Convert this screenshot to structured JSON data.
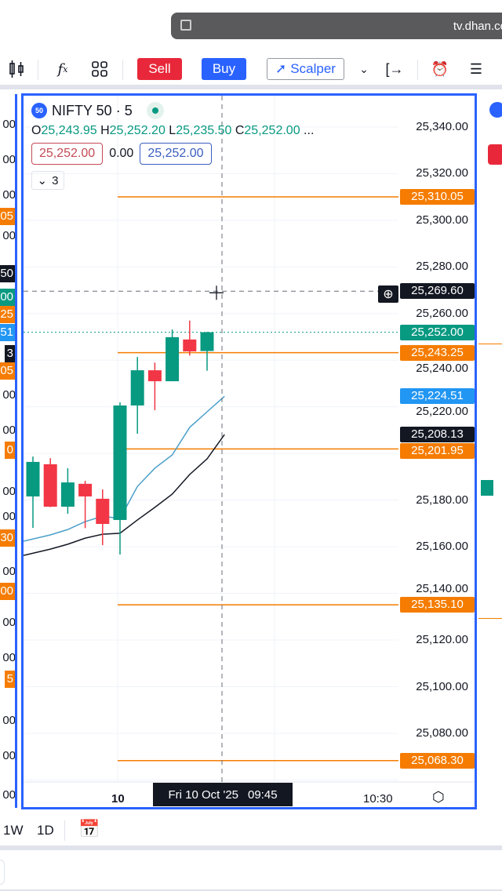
{
  "browser": {
    "url": "tv.dhan.co"
  },
  "toolbar": {
    "sell_label": "Sell",
    "buy_label": "Buy",
    "scalper_label": "Scalper"
  },
  "legend": {
    "symbol": "NIFTY 50 · 5",
    "logo_text": "50",
    "o_label": "O",
    "o": "25,243.95",
    "h_label": "H",
    "h": "25,252.20",
    "l_label": "L",
    "l": "25,235.50",
    "c_label": "C",
    "c": "25,252.00",
    "more": "...",
    "sell_price": "25,252.00",
    "spread": "0.00",
    "buy_price": "25,252.00",
    "indicators_count": "3"
  },
  "price_axis": [
    "25,340.00",
    "25,320.00",
    "25,300.00",
    "25,280.00",
    "25,260.00",
    "25,240.00",
    "25,220.00",
    "25,180.00",
    "25,160.00",
    "25,140.00",
    "25,120.00",
    "25,100.00",
    "25,080.00"
  ],
  "badges": [
    {
      "text": "25,310.05",
      "color": "#f57c00",
      "price": 25310.05
    },
    {
      "text": "25,269.60",
      "color": "#131722",
      "price": 25269.6
    },
    {
      "text": "25,252.00",
      "color": "#089981",
      "price": 25252.0
    },
    {
      "text": "25,243.25",
      "color": "#f57c00",
      "price": 25243.25
    },
    {
      "text": "25,224.51",
      "color": "#2196f3",
      "price": 25224.51
    },
    {
      "text": "25,208.13",
      "color": "#131722",
      "price": 25208.13
    },
    {
      "text": "25,201.95",
      "color": "#f57c00",
      "price": 25201.95
    },
    {
      "text": "25,135.10",
      "color": "#f57c00",
      "price": 25135.1
    },
    {
      "text": "25,068.30",
      "color": "#f57c00",
      "price": 25068.3
    }
  ],
  "time_axis": {
    "day_label": "10",
    "crosshair_time": "Fri 10 Oct '25",
    "crosshair_clock": "09:45",
    "later_label": "10:30"
  },
  "bottom": {
    "tf_1w": "1W",
    "tf_1d": "1D"
  },
  "left_fragments": [
    "00",
    "00",
    "00",
    "05",
    "00",
    "50",
    "00",
    "25",
    "51",
    "3",
    "05",
    "00",
    "00",
    "0",
    "00",
    "00",
    "30",
    "00",
    "00",
    "00",
    "00",
    "5",
    "00",
    "00",
    "00"
  ],
  "colors": {
    "up": "#089981",
    "down": "#f23645",
    "accent": "#2962ff",
    "level": "#f57c00",
    "ma_fast": "#4a9fc9",
    "ma_slow": "#131722"
  },
  "chart_data": {
    "type": "candlestick",
    "ylim": [
      25050,
      25350
    ],
    "candles": [
      {
        "o": 25181.6,
        "h": 25198.7,
        "l": 25168.1,
        "c": 25196.4
      },
      {
        "o": 25195.4,
        "h": 25198.0,
        "l": 25177.0,
        "c": 25177.2
      },
      {
        "o": 25177.2,
        "h": 25193.7,
        "l": 25174.2,
        "c": 25187.6
      },
      {
        "o": 25187.0,
        "h": 25188.3,
        "l": 25168.0,
        "c": 25181.6
      },
      {
        "o": 25180.6,
        "h": 25184.6,
        "l": 25160.7,
        "c": 25169.8
      },
      {
        "o": 25171.5,
        "h": 25222.0,
        "l": 25156.7,
        "c": 25220.6
      },
      {
        "o": 25220.6,
        "h": 25241.4,
        "l": 25208.5,
        "c": 25235.7
      },
      {
        "o": 25235.7,
        "h": 25239.0,
        "l": 25218.6,
        "c": 25231.0
      },
      {
        "o": 25231.0,
        "h": 25253.2,
        "l": 25231.0,
        "c": 25249.9
      },
      {
        "o": 25248.9,
        "h": 25257.0,
        "l": 25242.0,
        "c": 25243.8
      },
      {
        "o": 25243.95,
        "h": 25252.2,
        "l": 25235.5,
        "c": 25252.0
      }
    ],
    "ma_fast": [
      25165.1,
      25167.4,
      25170.8,
      25173.1,
      25172.1,
      25185.9,
      25193.7,
      25199.4,
      25211.2,
      25217.9,
      25224.51
    ],
    "ma_slow": [
      25159.0,
      25161.1,
      25163.7,
      25165.4,
      25165.8,
      25171.5,
      25176.9,
      25182.6,
      25191.0,
      25197.7,
      25208.13
    ],
    "levels": [
      25310.05,
      25243.25,
      25201.95,
      25135.1,
      25068.3
    ],
    "crosshair_price": 25269.6,
    "last_price": 25252.0
  }
}
